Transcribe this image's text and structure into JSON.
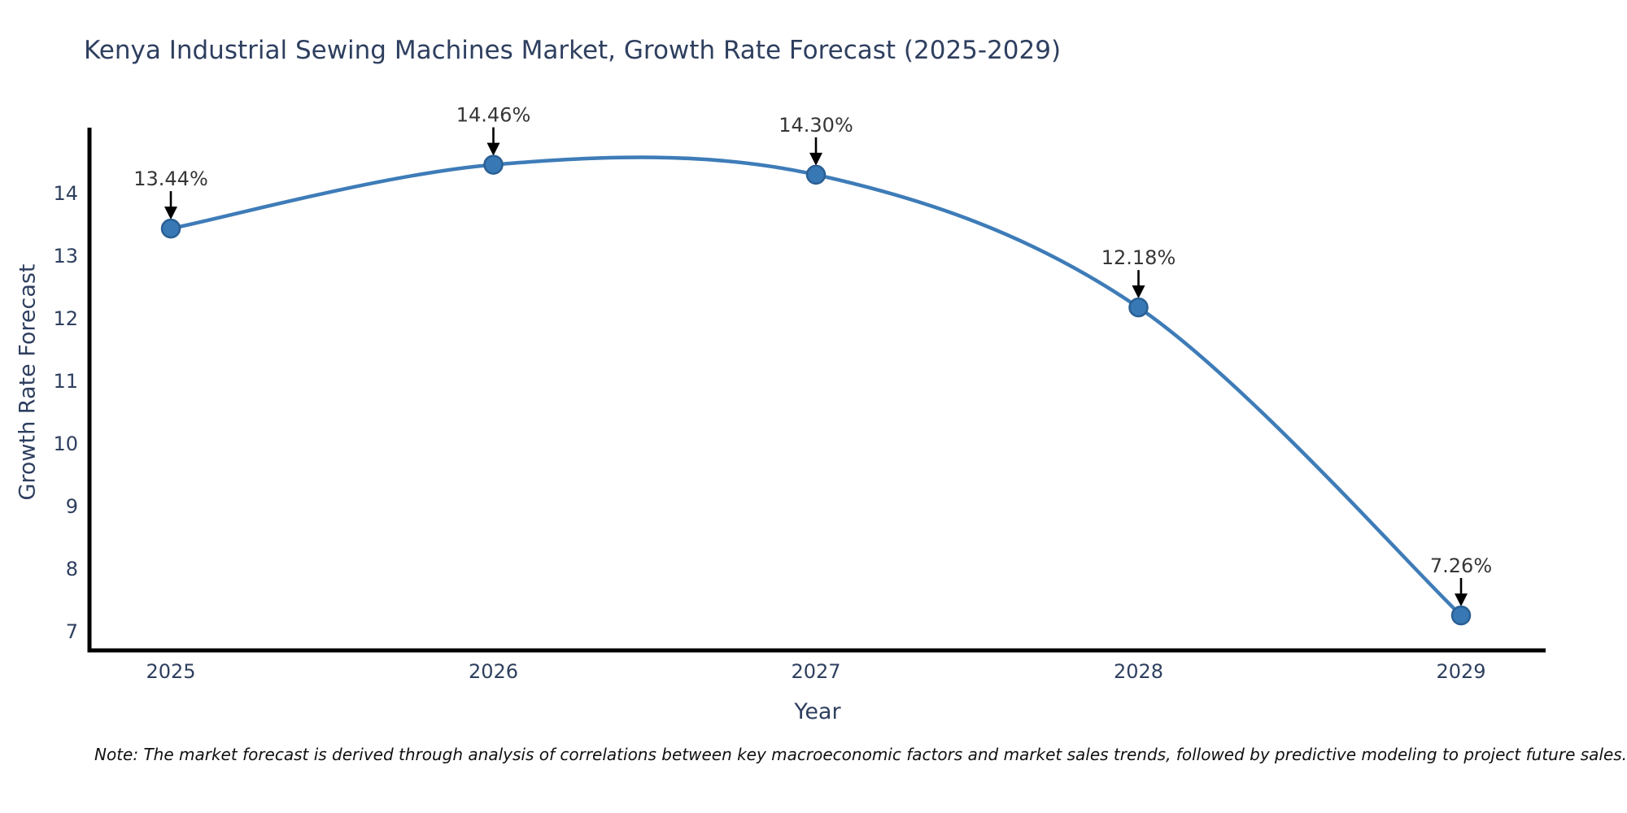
{
  "title": "Kenya Industrial Sewing Machines Market, Growth Rate Forecast (2025-2029)",
  "note": "Note: The market forecast is derived through analysis of correlations between key macroeconomic factors and market sales trends, followed by predictive modeling to project future sales.",
  "chart_data": {
    "type": "line",
    "line_shape": "spline",
    "title": "Kenya Industrial Sewing Machines Market, Growth Rate Forecast (2025-2029)",
    "xlabel": "Year",
    "ylabel": "Growth Rate Forecast",
    "x": [
      2025,
      2026,
      2027,
      2028,
      2029
    ],
    "values": [
      13.44,
      14.46,
      14.3,
      12.18,
      7.26
    ],
    "point_labels": [
      "13.44%",
      "14.46%",
      "14.30%",
      "12.18%",
      "7.26%"
    ],
    "xtick_labels": [
      "2025",
      "2026",
      "2027",
      "2028",
      "2029"
    ],
    "yticks": [
      7,
      8,
      9,
      10,
      11,
      12,
      13,
      14
    ],
    "ylim": [
      6.7,
      15.05
    ],
    "grid": false,
    "legend_position": "none",
    "annotation_style": "value label with black down arrow to marker",
    "colors": {
      "line": "#3e7cb8",
      "marker_fill": "#3878b4",
      "marker_edge": "#2a5f94",
      "axis_spine": "#000000",
      "tick_text": "#2e3f5f",
      "title_text": "#2e3f5f",
      "annotation_text": "#363636",
      "arrow": "#000000",
      "background": "#ffffff"
    }
  }
}
